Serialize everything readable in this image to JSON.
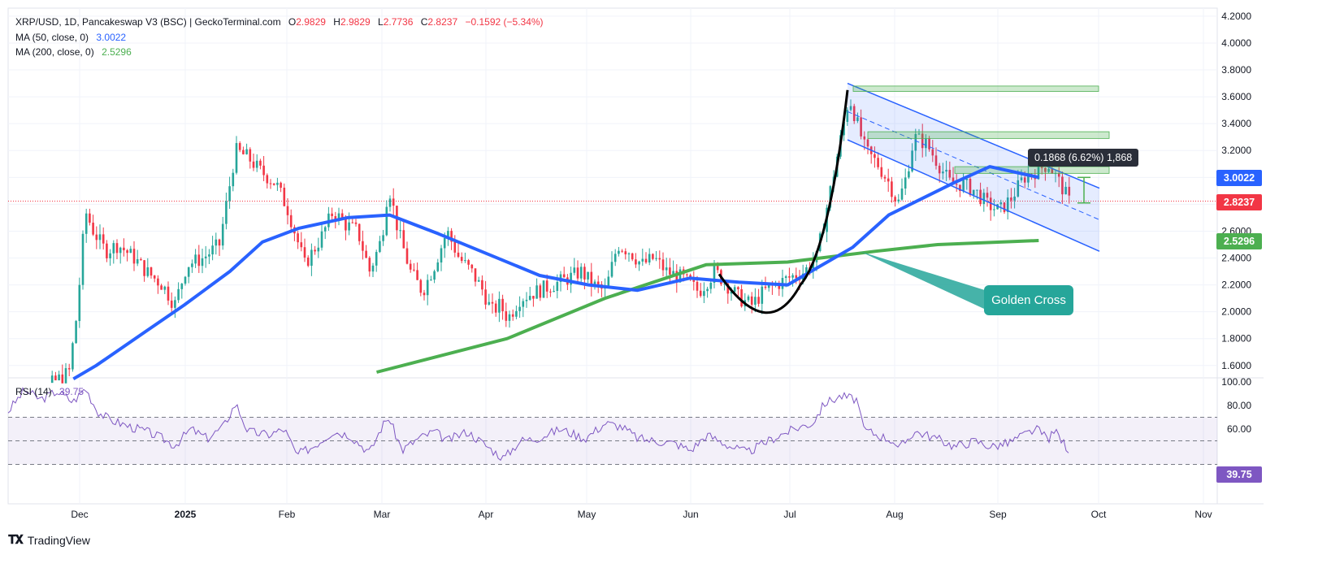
{
  "legend": {
    "symbol": "XRP/USD, 1D, Pancakeswap V3 (BSC) | GeckoTerminal.com",
    "open_label": "O",
    "open": "2.9829",
    "high_label": "H",
    "high": "2.9829",
    "low_label": "L",
    "low": "2.7736",
    "close_label": "C",
    "close": "2.8237",
    "change": "−0.1592 (−5.34%)",
    "ma50_label": "MA (50, close, 0)",
    "ma50_value": "3.0022",
    "ma200_label": "MA (200, close, 0)",
    "ma200_value": "2.5296",
    "rsi_label": "RSI (14)",
    "rsi_value": "39.75"
  },
  "price_tags": {
    "ma50": "3.0022",
    "close": "2.8237",
    "ma200": "2.5296",
    "rsi": "39.75"
  },
  "annotations": {
    "measure": "0.1868 (6.62%) 1,868",
    "golden_cross": "Golden Cross"
  },
  "branding": {
    "name": "TradingView"
  },
  "colors": {
    "up": "#26a69a",
    "down": "#f23645",
    "ma50": "#2962ff",
    "ma200": "#4caf50",
    "rsi": "#7e57c2",
    "channel": "#2962ff"
  },
  "chart_data": {
    "type": "candlestick",
    "price_axis": {
      "ticks": [
        "4.2000",
        "4.0000",
        "3.8000",
        "3.6000",
        "3.4000",
        "3.2000",
        "3.0000",
        "2.8000",
        "2.6000",
        "2.4000",
        "2.2000",
        "2.0000",
        "1.8000",
        "1.6000"
      ],
      "range": [
        1.52,
        4.26
      ]
    },
    "rsi_axis": {
      "ticks": [
        "100.00",
        "80.00",
        "60.00"
      ],
      "range": [
        0,
        100
      ],
      "levels": [
        70,
        50,
        30
      ]
    },
    "x_axis": {
      "ticks": [
        "Dec",
        "2025",
        "Feb",
        "Mar",
        "Apr",
        "May",
        "Jun",
        "Jul",
        "Aug",
        "Sep",
        "Oct",
        "Nov"
      ],
      "bold": [
        "2025"
      ]
    },
    "ma50_path": [
      [
        1.5,
        "2024-11-28"
      ],
      [
        1.6,
        "2024-12-05"
      ],
      [
        1.85,
        "2024-12-20"
      ],
      [
        2.05,
        "2025-01-01"
      ],
      [
        2.3,
        "2025-01-15"
      ],
      [
        2.52,
        "2025-01-25"
      ],
      [
        2.62,
        "2025-02-05"
      ],
      [
        2.7,
        "2025-02-20"
      ],
      [
        2.72,
        "2025-03-05"
      ],
      [
        2.58,
        "2025-03-20"
      ],
      [
        2.42,
        "2025-04-05"
      ],
      [
        2.27,
        "2025-04-20"
      ],
      [
        2.2,
        "2025-05-05"
      ],
      [
        2.16,
        "2025-05-20"
      ],
      [
        2.25,
        "2025-06-05"
      ],
      [
        2.22,
        "2025-06-20"
      ],
      [
        2.2,
        "2025-07-05"
      ],
      [
        2.48,
        "2025-07-25"
      ],
      [
        2.72,
        "2025-08-05"
      ],
      [
        2.96,
        "2025-08-25"
      ],
      [
        3.08,
        "2025-09-05"
      ],
      [
        3.0,
        "2025-09-20"
      ]
    ],
    "ma200_path": [
      [
        1.55,
        "2025-03-01"
      ],
      [
        1.8,
        "2025-04-10"
      ],
      [
        2.1,
        "2025-05-10"
      ],
      [
        2.35,
        "2025-06-10"
      ],
      [
        2.37,
        "2025-07-05"
      ],
      [
        2.45,
        "2025-08-01"
      ],
      [
        2.5,
        "2025-08-20"
      ],
      [
        2.53,
        "2025-09-20"
      ]
    ],
    "rsi_current": 39.75
  }
}
